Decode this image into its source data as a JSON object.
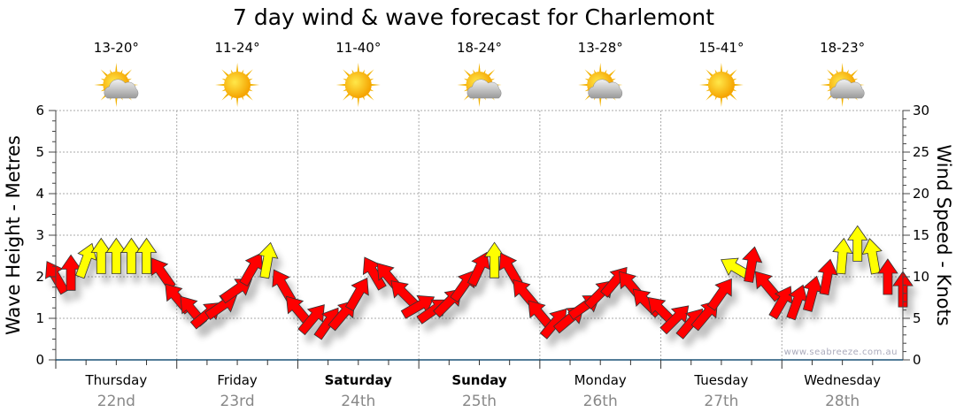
{
  "chart_data": {
    "type": "line",
    "title": "7 day wind & wave forecast for Charlemont",
    "ylabel_left": "Wave Height - Metres",
    "ylabel_right": "Wind Speed - Knots",
    "ylim_left": [
      0,
      6
    ],
    "ylim_right": [
      0,
      30
    ],
    "yticks_left": [
      "0",
      "1",
      "2",
      "3",
      "4",
      "5",
      "6"
    ],
    "yticks_right": [
      "0",
      "5",
      "10",
      "15",
      "20",
      "25",
      "30"
    ],
    "grid": true,
    "watermark": "www.seabreeze.com.au",
    "days": [
      {
        "name": "Thursday",
        "date": "22nd",
        "temp": "13-20°",
        "icon": "sun-cloud-icon",
        "bold": false
      },
      {
        "name": "Friday",
        "date": "23rd",
        "temp": "11-24°",
        "icon": "sun-icon",
        "bold": false
      },
      {
        "name": "Saturday",
        "date": "24th",
        "temp": "11-40°",
        "icon": "sun-icon",
        "bold": true
      },
      {
        "name": "Sunday",
        "date": "25th",
        "temp": "18-24°",
        "icon": "sun-cloud-icon",
        "bold": true
      },
      {
        "name": "Monday",
        "date": "26th",
        "temp": "13-28°",
        "icon": "sun-cloud-icon",
        "bold": false
      },
      {
        "name": "Tuesday",
        "date": "27th",
        "temp": "15-41°",
        "icon": "sun-icon",
        "bold": false
      },
      {
        "name": "Wednesday",
        "date": "28th",
        "temp": "18-23°",
        "icon": "sun-cloud-icon",
        "bold": false
      }
    ],
    "wind_interval_hours": 3,
    "wind_series": {
      "name": "Wind (knots, arrow direction deg)",
      "colors": {
        "red": "#ff0000",
        "yellow": "#ffff00"
      },
      "points": [
        {
          "speed": 10,
          "dir": -30,
          "color": "red"
        },
        {
          "speed": 10.5,
          "dir": 0,
          "color": "red"
        },
        {
          "speed": 12,
          "dir": 20,
          "color": "yellow"
        },
        {
          "speed": 12.5,
          "dir": 0,
          "color": "yellow"
        },
        {
          "speed": 12.5,
          "dir": 0,
          "color": "yellow"
        },
        {
          "speed": 12.5,
          "dir": 0,
          "color": "yellow"
        },
        {
          "speed": 12.5,
          "dir": 0,
          "color": "yellow"
        },
        {
          "speed": 10.5,
          "dir": -35,
          "color": "red"
        },
        {
          "speed": 7.5,
          "dir": -40,
          "color": "red"
        },
        {
          "speed": 6,
          "dir": -40,
          "color": "red"
        },
        {
          "speed": 5.5,
          "dir": 50,
          "color": "red"
        },
        {
          "speed": 6.5,
          "dir": 55,
          "color": "red"
        },
        {
          "speed": 8.5,
          "dir": 55,
          "color": "red"
        },
        {
          "speed": 11,
          "dir": 30,
          "color": "red"
        },
        {
          "speed": 12,
          "dir": 10,
          "color": "yellow"
        },
        {
          "speed": 9,
          "dir": -30,
          "color": "red"
        },
        {
          "speed": 6,
          "dir": -40,
          "color": "red"
        },
        {
          "speed": 5,
          "dir": 40,
          "color": "red"
        },
        {
          "speed": 4.5,
          "dir": 35,
          "color": "red"
        },
        {
          "speed": 5.5,
          "dir": 40,
          "color": "red"
        },
        {
          "speed": 8,
          "dir": 30,
          "color": "red"
        },
        {
          "speed": 10.5,
          "dir": -30,
          "color": "red"
        },
        {
          "speed": 10,
          "dir": -40,
          "color": "red"
        },
        {
          "speed": 8,
          "dir": -45,
          "color": "red"
        },
        {
          "speed": 6.5,
          "dir": 60,
          "color": "red"
        },
        {
          "speed": 6,
          "dir": 55,
          "color": "red"
        },
        {
          "speed": 7,
          "dir": 45,
          "color": "red"
        },
        {
          "speed": 9,
          "dir": 35,
          "color": "red"
        },
        {
          "speed": 11,
          "dir": 25,
          "color": "red"
        },
        {
          "speed": 12,
          "dir": 0,
          "color": "yellow"
        },
        {
          "speed": 11,
          "dir": -30,
          "color": "red"
        },
        {
          "speed": 8,
          "dir": -40,
          "color": "red"
        },
        {
          "speed": 5.5,
          "dir": -40,
          "color": "red"
        },
        {
          "speed": 4.5,
          "dir": 40,
          "color": "red"
        },
        {
          "speed": 5,
          "dir": 50,
          "color": "red"
        },
        {
          "speed": 6.5,
          "dir": 55,
          "color": "red"
        },
        {
          "speed": 8,
          "dir": 45,
          "color": "red"
        },
        {
          "speed": 9.5,
          "dir": 40,
          "color": "red"
        },
        {
          "speed": 9,
          "dir": -40,
          "color": "red"
        },
        {
          "speed": 7,
          "dir": -45,
          "color": "red"
        },
        {
          "speed": 6,
          "dir": -45,
          "color": "red"
        },
        {
          "speed": 5,
          "dir": 45,
          "color": "red"
        },
        {
          "speed": 4.5,
          "dir": 40,
          "color": "red"
        },
        {
          "speed": 5.5,
          "dir": 40,
          "color": "red"
        },
        {
          "speed": 8,
          "dir": 35,
          "color": "red"
        },
        {
          "speed": 11,
          "dir": -60,
          "color": "yellow"
        },
        {
          "speed": 11.5,
          "dir": 10,
          "color": "red"
        },
        {
          "speed": 9,
          "dir": -40,
          "color": "red"
        },
        {
          "speed": 7,
          "dir": 30,
          "color": "red"
        },
        {
          "speed": 7,
          "dir": 20,
          "color": "red"
        },
        {
          "speed": 8,
          "dir": 15,
          "color": "red"
        },
        {
          "speed": 10,
          "dir": 10,
          "color": "red"
        },
        {
          "speed": 12.5,
          "dir": 5,
          "color": "yellow"
        },
        {
          "speed": 14,
          "dir": 0,
          "color": "yellow"
        },
        {
          "speed": 12.5,
          "dir": -10,
          "color": "yellow"
        },
        {
          "speed": 10,
          "dir": 0,
          "color": "red"
        },
        {
          "speed": 8.5,
          "dir": 0,
          "color": "red"
        }
      ]
    }
  }
}
